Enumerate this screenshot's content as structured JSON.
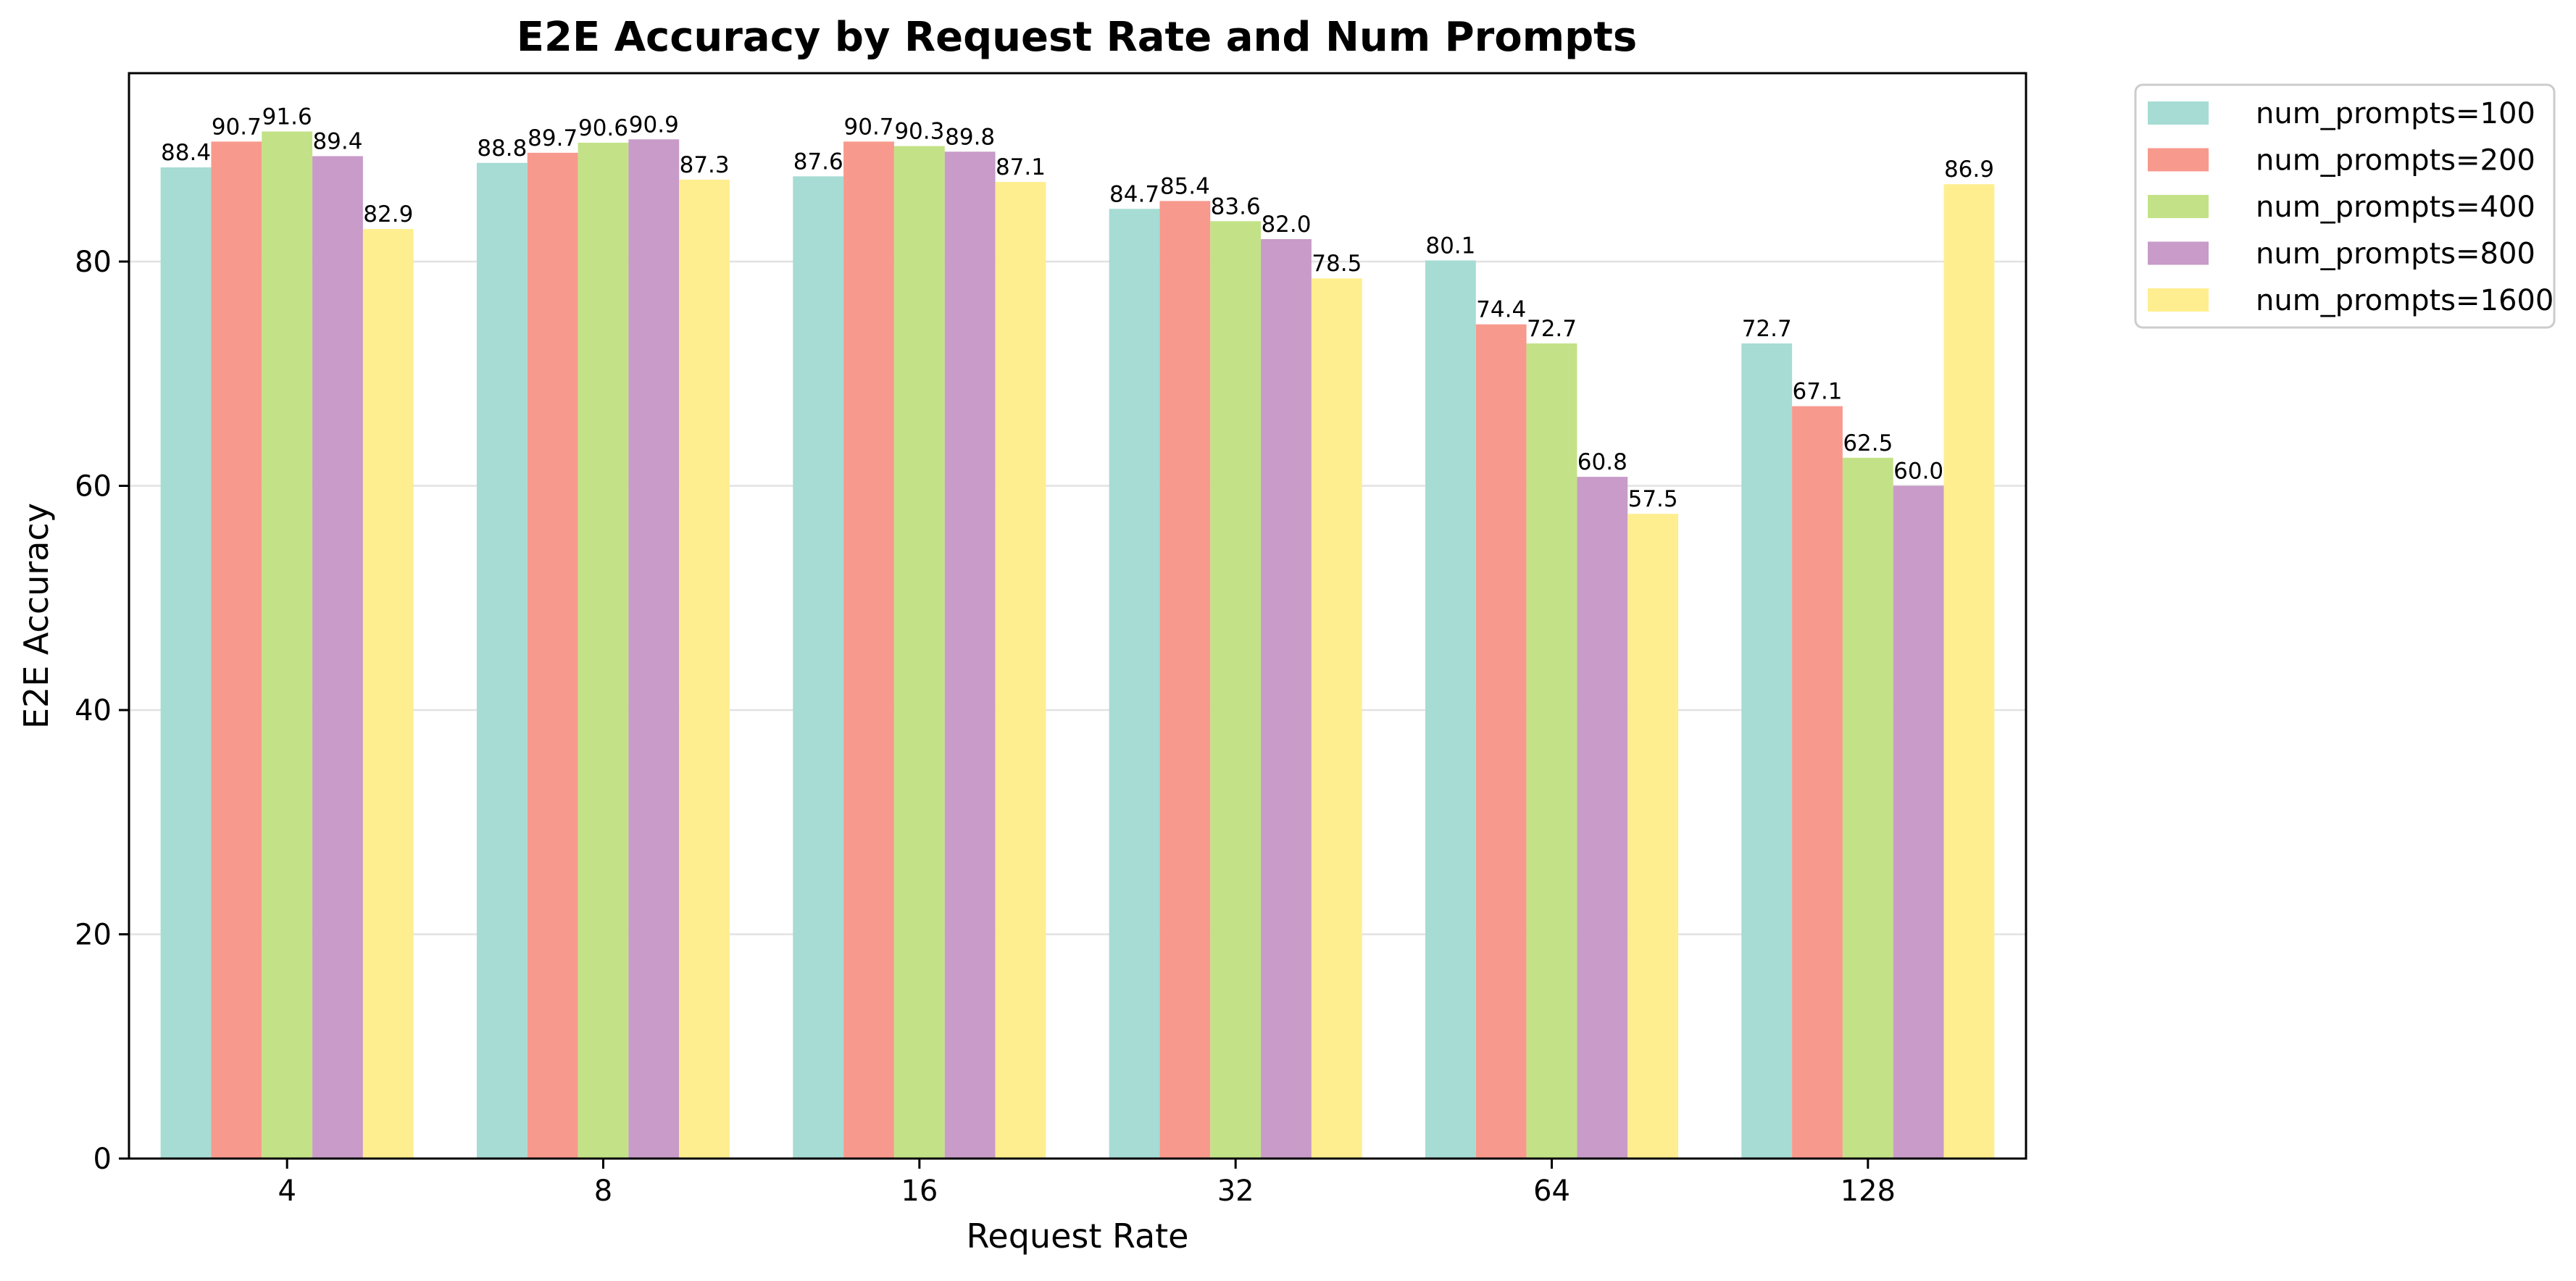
{
  "chart_data": {
    "type": "bar",
    "title": "E2E Accuracy by Request Rate and Num Prompts",
    "xlabel": "Request Rate",
    "ylabel": "E2E Accuracy",
    "categories": [
      "4",
      "8",
      "16",
      "32",
      "64",
      "128"
    ],
    "ylim": [
      0,
      96.8
    ],
    "yticks": [
      0,
      20,
      40,
      60,
      80
    ],
    "grid": "horizontal",
    "legend_position": "outside top-right",
    "series": [
      {
        "name": "num_prompts=100",
        "color": "#a6dcd4",
        "values": [
          88.4,
          88.8,
          87.6,
          84.7,
          80.1,
          72.7
        ]
      },
      {
        "name": "num_prompts=200",
        "color": "#f8998d",
        "values": [
          90.7,
          89.7,
          90.7,
          85.4,
          74.4,
          67.1
        ]
      },
      {
        "name": "num_prompts=400",
        "color": "#c3e288",
        "values": [
          91.6,
          90.6,
          90.3,
          83.6,
          72.7,
          62.5
        ]
      },
      {
        "name": "num_prompts=800",
        "color": "#c89bc8",
        "values": [
          89.4,
          90.9,
          89.8,
          82.0,
          60.8,
          60.0
        ]
      },
      {
        "name": "num_prompts=1600",
        "color": "#ffee8f",
        "values": [
          82.9,
          87.3,
          87.1,
          78.5,
          57.5,
          86.9
        ]
      }
    ]
  }
}
